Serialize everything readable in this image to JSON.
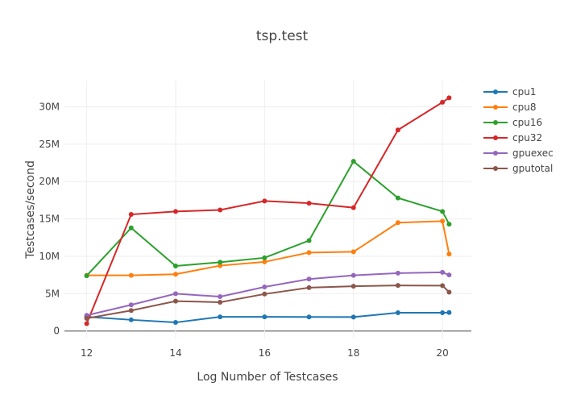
{
  "chart_data": {
    "type": "line",
    "title": "tsp.test",
    "xlabel": "Log Number of Testcases",
    "ylabel": "Testcases/second",
    "xlim": [
      11.5,
      20.65
    ],
    "ylim": [
      -1000000,
      33500000
    ],
    "xticks": [
      12,
      14,
      16,
      18,
      20
    ],
    "xtick_labels": [
      "12",
      "14",
      "16",
      "18",
      "20"
    ],
    "yticks": [
      0,
      5000000,
      10000000,
      15000000,
      20000000,
      25000000,
      30000000
    ],
    "ytick_labels": [
      "0",
      "5M",
      "10M",
      "15M",
      "20M",
      "25M",
      "30M"
    ],
    "grid": true,
    "legend_position": "top-right",
    "x": [
      12,
      13,
      14,
      15,
      16,
      17,
      18,
      19,
      20,
      20.15
    ],
    "series": [
      {
        "name": "cpu1",
        "color": "#1f77b4",
        "values": [
          1900000,
          1500000,
          1150000,
          1900000,
          1900000,
          1880000,
          1870000,
          2450000,
          2450000,
          2480000
        ]
      },
      {
        "name": "cpu8",
        "color": "#ff7f0e",
        "values": [
          7450000,
          7450000,
          7600000,
          8750000,
          9250000,
          10500000,
          10600000,
          14500000,
          14700000,
          10300000
        ]
      },
      {
        "name": "cpu16",
        "color": "#2ca02c",
        "values": [
          7400000,
          13800000,
          8700000,
          9200000,
          9800000,
          12100000,
          22700000,
          17800000,
          16000000,
          14300000
        ]
      },
      {
        "name": "cpu32",
        "color": "#d62728",
        "values": [
          1000000,
          15600000,
          16000000,
          16200000,
          17400000,
          17100000,
          16500000,
          26900000,
          30600000,
          31200000
        ]
      },
      {
        "name": "gpuexec",
        "color": "#9467bd",
        "values": [
          2100000,
          3500000,
          5000000,
          4600000,
          5900000,
          6950000,
          7450000,
          7750000,
          7850000,
          7500000
        ]
      },
      {
        "name": "gputotal",
        "color": "#8c564b",
        "values": [
          1700000,
          2750000,
          4000000,
          3850000,
          4950000,
          5800000,
          6000000,
          6100000,
          6080000,
          5200000
        ]
      }
    ]
  }
}
